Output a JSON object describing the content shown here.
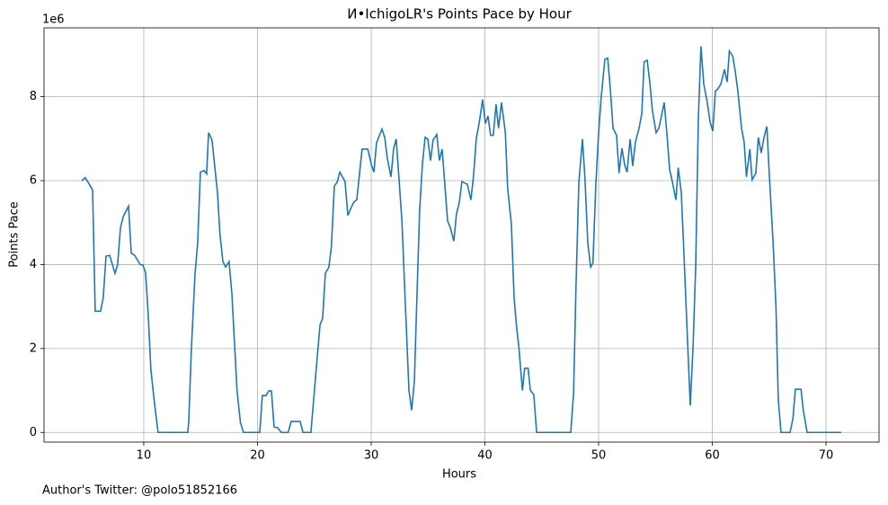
{
  "chart_data": {
    "type": "line",
    "title": "И•IchigoLR's Points Pace by Hour",
    "x_label": "Hours",
    "y_label": "Points Pace",
    "y_offset_label": "1e6",
    "annotation": "Author's Twitter: @polo51852166",
    "grid": true,
    "xlim": [
      1.23,
      74.66
    ],
    "xticks": [
      10,
      20,
      30,
      40,
      50,
      60,
      70
    ],
    "ylim": [
      -0.23,
      9.64
    ],
    "yticks": [
      0,
      2,
      4,
      6,
      8
    ],
    "x": [
      4.55,
      4.86,
      5.5,
      5.73,
      6.2,
      6.44,
      6.68,
      7.0,
      7.47,
      7.7,
      7.95,
      8.2,
      8.66,
      8.9,
      9.2,
      9.68,
      9.92,
      10.16,
      10.4,
      10.63,
      10.95,
      11.26,
      13.87,
      13.95,
      14.19,
      14.5,
      14.74,
      14.98,
      15.3,
      15.53,
      15.7,
      16.0,
      16.48,
      16.7,
      16.96,
      17.2,
      17.5,
      17.75,
      18.2,
      18.5,
      18.77,
      20.2,
      20.43,
      20.75,
      21.0,
      21.23,
      21.46,
      21.78,
      22.1,
      22.7,
      22.96,
      23.75,
      24.0,
      24.7,
      25.18,
      25.5,
      25.73,
      25.97,
      26.28,
      26.5,
      26.76,
      27.0,
      27.24,
      27.7,
      27.95,
      28.26,
      28.5,
      28.73,
      29.2,
      29.7,
      30.0,
      30.24,
      30.47,
      30.95,
      31.19,
      31.42,
      31.74,
      31.98,
      32.2,
      32.7,
      33.0,
      33.32,
      33.56,
      33.8,
      34.03,
      34.26,
      34.5,
      34.74,
      34.98,
      35.22,
      35.45,
      35.77,
      36.0,
      36.24,
      36.72,
      36.96,
      37.27,
      37.5,
      37.75,
      37.98,
      38.46,
      38.77,
      39.0,
      39.24,
      39.5,
      39.8,
      40.04,
      40.27,
      40.5,
      40.74,
      40.98,
      41.2,
      41.46,
      41.8,
      42.0,
      42.33,
      42.57,
      42.8,
      43.0,
      43.3,
      43.5,
      43.8,
      44.0,
      44.3,
      44.55,
      47.55,
      47.8,
      48.0,
      48.26,
      48.58,
      48.8,
      49.05,
      49.3,
      49.5,
      49.76,
      50.0,
      50.24,
      50.55,
      50.8,
      51.03,
      51.27,
      51.58,
      51.8,
      52.05,
      52.3,
      52.5,
      52.77,
      53.0,
      53.24,
      53.56,
      53.8,
      54.0,
      54.27,
      54.5,
      54.74,
      55.06,
      55.3,
      55.77,
      56.0,
      56.25,
      56.48,
      56.8,
      57.0,
      57.27,
      57.5,
      57.75,
      58.06,
      58.3,
      58.54,
      58.77,
      59.0,
      59.25,
      59.56,
      59.8,
      60.04,
      60.27,
      60.5,
      60.75,
      61.07,
      61.3,
      61.5,
      61.8,
      62.0,
      62.25,
      62.57,
      62.8,
      63.0,
      63.3,
      63.5,
      63.83,
      64.05,
      64.3,
      64.55,
      64.8,
      65.0,
      65.35,
      65.6,
      65.8,
      66.04,
      66.84,
      67.1,
      67.3,
      67.8,
      68.0,
      68.34,
      71.34
    ],
    "series": [
      {
        "color": "#1f77b4",
        "values": [
          6.0,
          6.07,
          5.78,
          2.89,
          2.89,
          3.22,
          4.2,
          4.22,
          3.79,
          4.0,
          4.88,
          5.15,
          5.39,
          4.27,
          4.22,
          4.0,
          3.99,
          3.81,
          2.76,
          1.49,
          0.68,
          0,
          0,
          0.24,
          2.0,
          3.75,
          4.51,
          6.2,
          6.24,
          6.16,
          7.14,
          6.97,
          5.72,
          4.73,
          4.07,
          3.94,
          4.07,
          3.31,
          1.0,
          0.24,
          0,
          0,
          0.88,
          0.88,
          0.99,
          0.99,
          0.13,
          0.11,
          0,
          0,
          0.26,
          0.26,
          0,
          0,
          1.56,
          2.56,
          2.72,
          3.79,
          3.94,
          4.42,
          5.87,
          5.96,
          6.2,
          5.98,
          5.17,
          5.37,
          5.5,
          5.54,
          6.75,
          6.75,
          6.4,
          6.2,
          6.9,
          7.23,
          7.03,
          6.53,
          6.09,
          6.77,
          6.99,
          5.06,
          3.09,
          1.0,
          0.53,
          1.23,
          3.31,
          5.28,
          6.37,
          7.03,
          6.99,
          6.48,
          6.97,
          7.1,
          6.48,
          6.75,
          5.04,
          4.88,
          4.56,
          5.21,
          5.48,
          5.98,
          5.91,
          5.54,
          6.11,
          6.99,
          7.38,
          7.93,
          7.36,
          7.54,
          7.08,
          7.08,
          7.82,
          7.25,
          7.86,
          7.14,
          5.83,
          4.95,
          3.2,
          2.48,
          2.0,
          1.0,
          1.53,
          1.53,
          1.0,
          0.9,
          0,
          0,
          0.94,
          3.35,
          5.94,
          6.99,
          6.05,
          4.51,
          3.94,
          4.03,
          5.94,
          7.14,
          8.02,
          8.89,
          8.92,
          8.19,
          7.25,
          7.08,
          6.18,
          6.77,
          6.37,
          6.2,
          6.99,
          6.35,
          6.92,
          7.25,
          7.6,
          8.83,
          8.87,
          8.35,
          7.65,
          7.14,
          7.25,
          7.86,
          7.14,
          6.26,
          5.98,
          5.54,
          6.31,
          5.72,
          4.29,
          2.65,
          0.64,
          2.0,
          3.97,
          7.47,
          9.2,
          8.3,
          7.86,
          7.4,
          7.18,
          8.13,
          8.19,
          8.3,
          8.65,
          8.35,
          9.09,
          8.96,
          8.63,
          8.13,
          7.25,
          6.92,
          6.09,
          6.75,
          6.02,
          6.18,
          7.03,
          6.66,
          7.03,
          7.29,
          6.2,
          4.51,
          2.98,
          0.79,
          0,
          0,
          0.35,
          1.03,
          1.03,
          0.53,
          0,
          0
        ]
      }
    ]
  }
}
